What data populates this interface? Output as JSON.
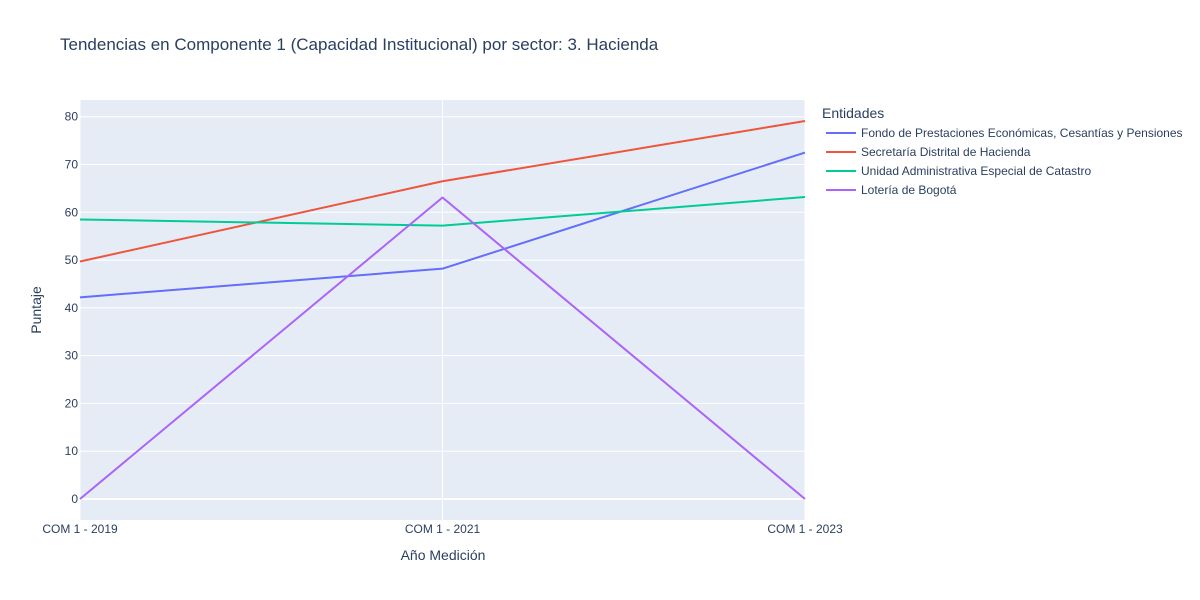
{
  "chart_data": {
    "type": "line",
    "title": "Tendencias en Componente 1 (Capacidad Institucional) por sector: 3. Hacienda",
    "xlabel": "Año Medición",
    "ylabel": "Puntaje",
    "categories": [
      "COM 1 - 2019",
      "COM 1 - 2021",
      "COM 1 - 2023"
    ],
    "yticks": [
      0,
      10,
      20,
      30,
      40,
      50,
      60,
      70,
      80
    ],
    "ylim": [
      -4.4,
      83.5
    ],
    "grid": true,
    "legend_title": "Entidades",
    "legend_position": "right",
    "series": [
      {
        "name": "Fondo de Prestaciones Económicas, Cesantías y Pensiones",
        "color": "#636efa",
        "values": [
          42.2,
          48.2,
          72.5
        ]
      },
      {
        "name": "Secretaría Distrital de Hacienda",
        "color": "#ef553b",
        "values": [
          49.7,
          66.5,
          79.1
        ]
      },
      {
        "name": "Unidad Administrativa Especial de Catastro",
        "color": "#00cc96",
        "values": [
          58.5,
          57.2,
          63.2
        ]
      },
      {
        "name": "Lotería de Bogotá",
        "color": "#ab63fa",
        "values": [
          0,
          63.1,
          0
        ]
      }
    ]
  }
}
